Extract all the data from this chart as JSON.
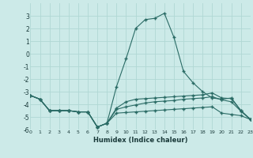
{
  "xlabel": "Humidex (Indice chaleur)",
  "xlim": [
    0,
    23
  ],
  "ylim": [
    -6,
    4
  ],
  "xticks": [
    0,
    1,
    2,
    3,
    4,
    5,
    6,
    7,
    8,
    9,
    10,
    11,
    12,
    13,
    14,
    15,
    16,
    17,
    18,
    19,
    20,
    21,
    22,
    23
  ],
  "yticks": [
    -6,
    -5,
    -4,
    -3,
    -2,
    -1,
    0,
    1,
    2,
    3
  ],
  "line_color": "#2a6b65",
  "bg_color": "#cceae8",
  "grid_color": "#b0d8d4",
  "lines": [
    {
      "x": [
        0,
        1,
        2,
        3,
        4,
        5,
        6,
        7,
        8,
        9,
        10,
        11,
        12,
        13,
        14,
        15,
        16,
        17,
        18,
        19,
        20,
        21,
        22,
        23
      ],
      "y": [
        -3.3,
        -3.6,
        -4.5,
        -4.5,
        -4.5,
        -4.6,
        -4.6,
        -5.8,
        -5.5,
        -2.6,
        -0.4,
        2.0,
        2.7,
        2.8,
        3.2,
        1.3,
        -1.4,
        -2.3,
        -3.0,
        -3.5,
        -3.6,
        -3.5,
        -4.5,
        -5.2
      ]
    },
    {
      "x": [
        0,
        1,
        2,
        3,
        4,
        5,
        6,
        7,
        8,
        9,
        10,
        11,
        12,
        13,
        14,
        15,
        16,
        17,
        18,
        19,
        20,
        21,
        22,
        23
      ],
      "y": [
        -3.3,
        -3.6,
        -4.5,
        -4.5,
        -4.5,
        -4.6,
        -4.6,
        -5.8,
        -5.5,
        -4.3,
        -3.8,
        -3.6,
        -3.55,
        -3.5,
        -3.45,
        -3.4,
        -3.35,
        -3.3,
        -3.25,
        -3.1,
        -3.5,
        -3.55,
        -4.5,
        -5.2
      ]
    },
    {
      "x": [
        0,
        1,
        2,
        3,
        4,
        5,
        6,
        7,
        8,
        9,
        10,
        11,
        12,
        13,
        14,
        15,
        16,
        17,
        18,
        19,
        20,
        21,
        22,
        23
      ],
      "y": [
        -3.3,
        -3.6,
        -4.5,
        -4.5,
        -4.5,
        -4.6,
        -4.6,
        -5.8,
        -5.5,
        -4.4,
        -4.2,
        -4.05,
        -3.9,
        -3.8,
        -3.75,
        -3.7,
        -3.6,
        -3.55,
        -3.5,
        -3.4,
        -3.65,
        -3.8,
        -4.55,
        -5.2
      ]
    },
    {
      "x": [
        0,
        1,
        2,
        3,
        4,
        5,
        6,
        7,
        8,
        9,
        10,
        11,
        12,
        13,
        14,
        15,
        16,
        17,
        18,
        19,
        20,
        21,
        22,
        23
      ],
      "y": [
        -3.3,
        -3.6,
        -4.5,
        -4.5,
        -4.5,
        -4.6,
        -4.6,
        -5.8,
        -5.5,
        -4.7,
        -4.65,
        -4.6,
        -4.55,
        -4.5,
        -4.45,
        -4.4,
        -4.35,
        -4.3,
        -4.25,
        -4.2,
        -4.7,
        -4.8,
        -4.9,
        -5.2
      ]
    }
  ]
}
